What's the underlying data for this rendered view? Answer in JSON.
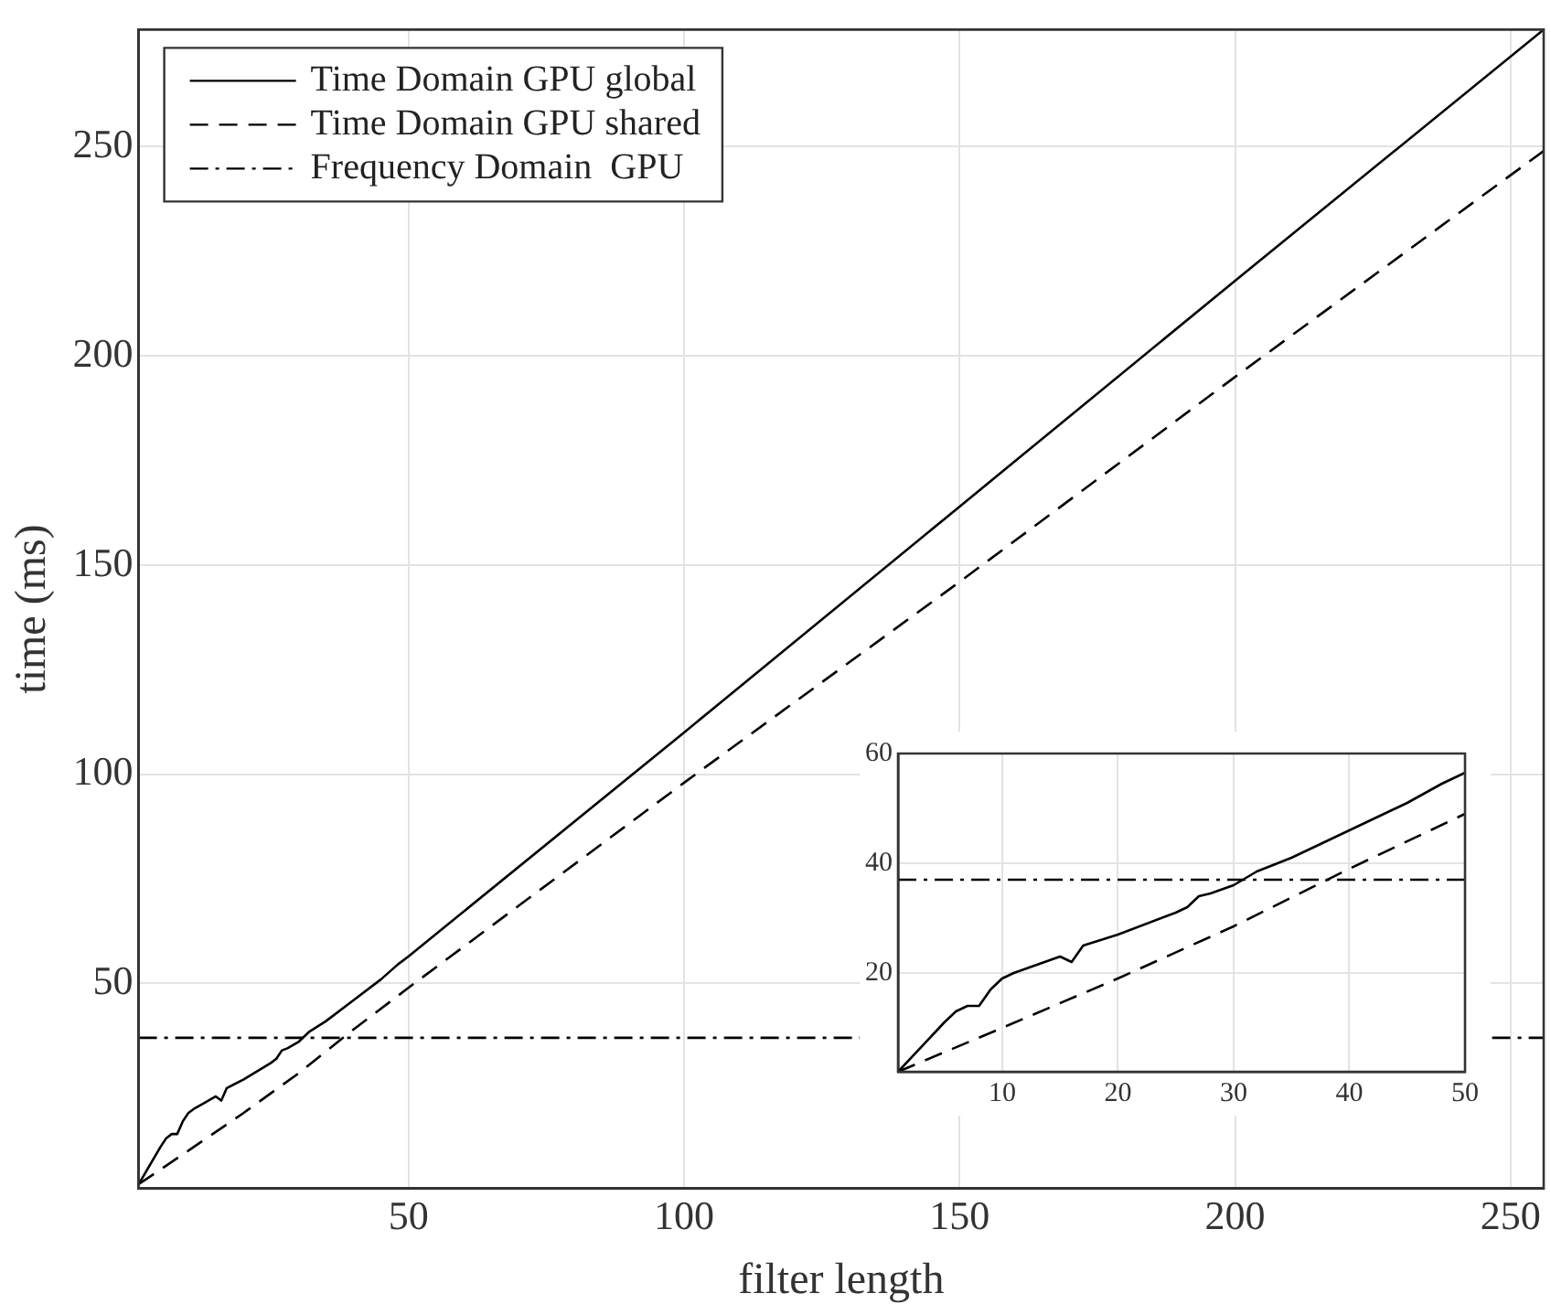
{
  "chart_data": [
    {
      "type": "line",
      "xlabel": "filter length",
      "ylabel": "time (ms)",
      "xlim": [
        1,
        256
      ],
      "ylim": [
        1,
        278
      ],
      "xticks": [
        50,
        100,
        150,
        200,
        250
      ],
      "yticks": [
        50,
        100,
        150,
        200,
        250
      ],
      "grid": true,
      "legend": "top left",
      "series": [
        {
          "name": "Time Domain GPU global",
          "color": "#000000",
          "line_style": "solid",
          "x": [
            1,
            5,
            6,
            7,
            8,
            9,
            10,
            11,
            13,
            15,
            16,
            17,
            20,
            25,
            26,
            27,
            28,
            30,
            32,
            35,
            40,
            45,
            48,
            50,
            100,
            150,
            200,
            256
          ],
          "values": [
            2,
            11,
            13,
            14,
            14,
            17,
            19,
            20,
            21.5,
            23,
            22,
            25,
            27,
            31,
            32,
            34,
            34.5,
            36,
            38.5,
            41,
            46,
            51,
            54.5,
            56.5,
            110,
            164,
            218,
            278
          ]
        },
        {
          "name": "Time Domain GPU shared",
          "color": "#000000",
          "line_style": "dashed",
          "x": [
            1,
            10,
            20,
            30,
            40,
            50,
            100,
            150,
            200,
            256
          ],
          "values": [
            2,
            10,
            19,
            28.5,
            39,
            49,
            98,
            146,
            195,
            249
          ]
        },
        {
          "name": "Frequency Domain  GPU",
          "color": "#000000",
          "line_style": "dashdot",
          "x": [
            1,
            256
          ],
          "values": [
            37,
            37
          ]
        }
      ]
    },
    {
      "type": "line",
      "xlim": [
        1,
        50
      ],
      "ylim": [
        2,
        60
      ],
      "xticks": [
        10,
        20,
        30,
        40,
        50
      ],
      "yticks": [
        20,
        40,
        60
      ],
      "grid": true,
      "series": [
        {
          "color": "#000000",
          "line_style": "solid",
          "x": [
            1,
            5,
            6,
            7,
            8,
            9,
            10,
            11,
            13,
            15,
            16,
            17,
            20,
            25,
            26,
            27,
            28,
            30,
            32,
            35,
            40,
            45,
            48,
            50
          ],
          "values": [
            2,
            11,
            13,
            14,
            14,
            17,
            19,
            20,
            21.5,
            23,
            22,
            25,
            27,
            31,
            32,
            34,
            34.5,
            36,
            38.5,
            41,
            46,
            51,
            54.5,
            56.5
          ]
        },
        {
          "color": "#000000",
          "line_style": "dashed",
          "x": [
            1,
            10,
            20,
            30,
            40,
            50
          ],
          "values": [
            2,
            10,
            19,
            28.5,
            39,
            49
          ]
        },
        {
          "color": "#000000",
          "line_style": "dashdot",
          "x": [
            1,
            50
          ],
          "values": [
            37,
            37
          ]
        }
      ]
    }
  ]
}
